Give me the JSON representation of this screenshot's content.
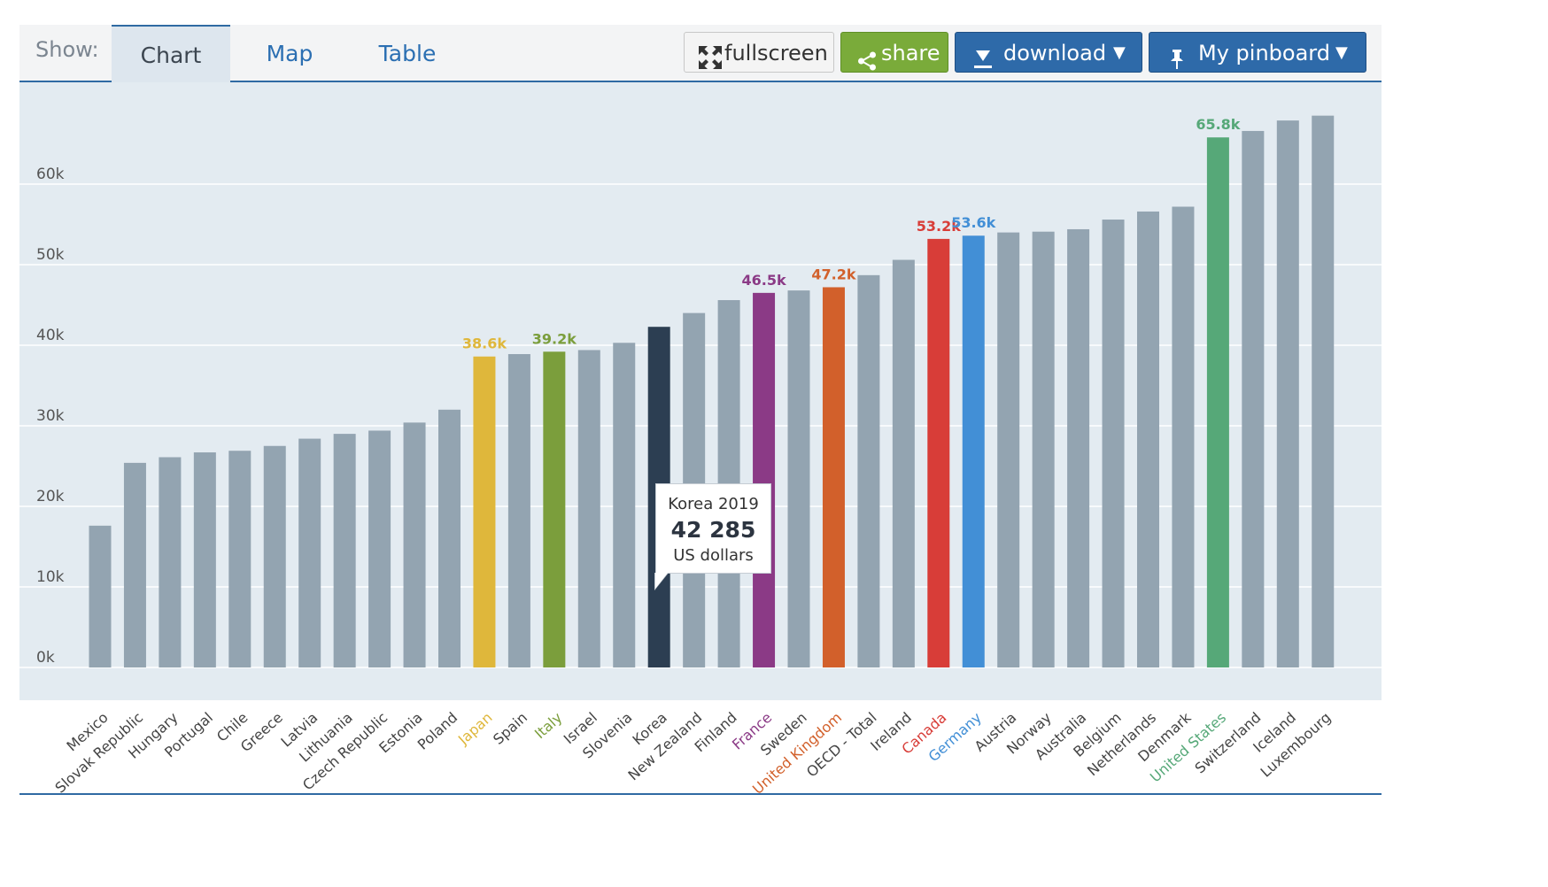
{
  "toolbar": {
    "show_label": "Show:",
    "tabs": [
      {
        "label": "Chart",
        "active": true
      },
      {
        "label": "Map",
        "active": false
      },
      {
        "label": "Table",
        "active": false
      }
    ],
    "buttons": {
      "fullscreen": "fullscreen",
      "share": "share",
      "download": "download",
      "pinboard": "My pinboard"
    },
    "caret": "▼",
    "colors": {
      "share": "#7aab3a",
      "download": "#2e6aa9",
      "pinboard": "#2e6aa9",
      "accent_line": "#2f6aa3"
    }
  },
  "tooltip": {
    "title": "Korea 2019",
    "value": "42 285",
    "unit": "US dollars"
  },
  "chart_data": {
    "type": "bar",
    "title": "",
    "xlabel": "",
    "ylabel": "",
    "ylim": [
      0,
      70000
    ],
    "yticks": [
      0,
      10000,
      20000,
      30000,
      40000,
      50000,
      60000
    ],
    "ytick_labels": [
      "0k",
      "10k",
      "20k",
      "30k",
      "40k",
      "50k",
      "60k"
    ],
    "grid": true,
    "default_color": "#93a4b1",
    "categories": [
      "Mexico",
      "Slovak Republic",
      "Hungary",
      "Portugal",
      "Chile",
      "Greece",
      "Latvia",
      "Lithuania",
      "Czech Republic",
      "Estonia",
      "Poland",
      "Japan",
      "Spain",
      "Italy",
      "Israel",
      "Slovenia",
      "Korea",
      "New Zealand",
      "Finland",
      "France",
      "Sweden",
      "United Kingdom",
      "OECD - Total",
      "Ireland",
      "Canada",
      "Germany",
      "Austria",
      "Norway",
      "Australia",
      "Belgium",
      "Netherlands",
      "Denmark",
      "United States",
      "Switzerland",
      "Iceland",
      "Luxembourg"
    ],
    "values": [
      17600,
      25400,
      26100,
      26700,
      26900,
      27500,
      28400,
      29000,
      29400,
      30400,
      32000,
      38600,
      38900,
      39200,
      39400,
      40300,
      42285,
      44000,
      45600,
      46500,
      46800,
      47200,
      48700,
      50600,
      53200,
      53600,
      54000,
      54100,
      54400,
      55600,
      56600,
      57200,
      65800,
      66600,
      67900,
      68500
    ],
    "highlights": [
      {
        "category": "Japan",
        "color": "#dfb73b",
        "label": "38.6k"
      },
      {
        "category": "Italy",
        "color": "#7b9e3c",
        "label": "39.2k"
      },
      {
        "category": "Korea",
        "color": "#2c3e52",
        "label": ""
      },
      {
        "category": "France",
        "color": "#8b3a86",
        "label": "46.5k"
      },
      {
        "category": "United Kingdom",
        "color": "#d2602b",
        "label": "47.2k"
      },
      {
        "category": "Canada",
        "color": "#d83d38",
        "label": "53.2k"
      },
      {
        "category": "Germany",
        "color": "#428fd6",
        "label": "53.6k"
      },
      {
        "category": "United States",
        "color": "#56a878",
        "label": "65.8k"
      }
    ]
  }
}
